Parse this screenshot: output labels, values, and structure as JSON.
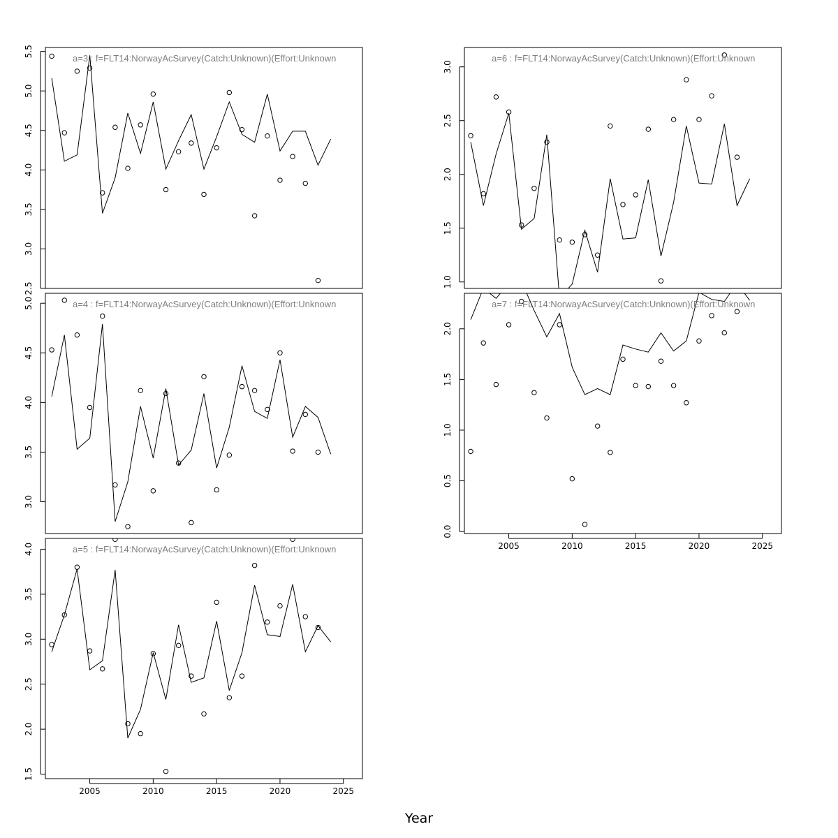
{
  "figure": {
    "xlabel": "Year"
  },
  "chart_data": [
    {
      "type": "line",
      "title": "a=3  :  f=FLT14:NorwayAcSurvey(Catch:Unknown)(Effort:Unknown",
      "xlim": [
        2001.5,
        2026.5
      ],
      "ylim": [
        2.5,
        5.55
      ],
      "yticks": [
        "2.5",
        "3.0",
        "3.5",
        "4.0",
        "4.5",
        "5.0",
        "5.5"
      ],
      "xticks": [],
      "observed": {
        "x": [
          2002,
          2003,
          2004,
          2005,
          2006,
          2007,
          2008,
          2009,
          2010,
          2011,
          2012,
          2013,
          2014,
          2015,
          2016,
          2017,
          2018,
          2019,
          2020,
          2021,
          2022,
          2023
        ],
        "y": [
          5.44,
          4.47,
          5.25,
          5.29,
          3.71,
          4.54,
          4.02,
          4.57,
          4.96,
          3.75,
          4.23,
          4.34,
          3.69,
          4.28,
          4.98,
          4.51,
          3.42,
          4.43,
          3.87,
          4.17,
          3.83,
          2.6
        ]
      },
      "fitted": {
        "x": [
          2002,
          2003,
          2004,
          2005,
          2006,
          2007,
          2008,
          2009,
          2010,
          2011,
          2012,
          2013,
          2014,
          2015,
          2016,
          2017,
          2018,
          2019,
          2020,
          2021,
          2022,
          2023,
          2024
        ],
        "y": [
          5.16,
          4.11,
          4.19,
          5.45,
          3.45,
          3.9,
          4.72,
          4.21,
          4.86,
          4.01,
          4.37,
          4.7,
          4.01,
          4.42,
          4.86,
          4.45,
          4.35,
          4.96,
          4.24,
          4.49,
          4.49,
          4.06,
          4.39
        ]
      }
    },
    {
      "type": "line",
      "title": "a=4  :  f=FLT14:NorwayAcSurvey(Catch:Unknown)(Effort:Unknown",
      "xlim": [
        2001.5,
        2026.5
      ],
      "ylim": [
        2.68,
        5.1
      ],
      "yticks": [
        "3.0",
        "3.5",
        "4.0",
        "4.5",
        "5.0"
      ],
      "xticks": [],
      "observed": {
        "x": [
          2002,
          2003,
          2004,
          2005,
          2006,
          2007,
          2008,
          2009,
          2010,
          2011,
          2012,
          2013,
          2014,
          2015,
          2016,
          2017,
          2018,
          2019,
          2020,
          2021,
          2022,
          2023
        ],
        "y": [
          4.53,
          5.03,
          4.68,
          3.95,
          4.87,
          3.17,
          2.75,
          4.12,
          3.11,
          4.09,
          3.39,
          2.79,
          4.26,
          3.12,
          3.47,
          4.16,
          4.12,
          3.93,
          4.5,
          3.51,
          3.88,
          3.5
        ]
      },
      "fitted": {
        "x": [
          2002,
          2003,
          2004,
          2005,
          2006,
          2007,
          2008,
          2009,
          2010,
          2011,
          2012,
          2013,
          2014,
          2015,
          2016,
          2017,
          2018,
          2019,
          2020,
          2021,
          2022,
          2023,
          2024
        ],
        "y": [
          4.06,
          4.68,
          3.53,
          3.64,
          4.79,
          2.8,
          3.2,
          3.96,
          3.44,
          4.14,
          3.37,
          3.52,
          4.09,
          3.34,
          3.75,
          4.37,
          3.91,
          3.84,
          4.43,
          3.65,
          3.96,
          3.85,
          3.48
        ]
      }
    },
    {
      "type": "line",
      "title": "a=5  :  f=FLT14:NorwayAcSurvey(Catch:Unknown)(Effort:Unknown",
      "xlim": [
        2001.5,
        2026.5
      ],
      "ylim": [
        1.45,
        4.12
      ],
      "yticks": [
        "1.5",
        "2.0",
        "2.5",
        "3.0",
        "3.5",
        "4.0"
      ],
      "xticks": [
        "2005",
        "2010",
        "2015",
        "2020",
        "2025"
      ],
      "observed": {
        "x": [
          2002,
          2003,
          2004,
          2005,
          2006,
          2007,
          2008,
          2009,
          2010,
          2011,
          2012,
          2013,
          2014,
          2015,
          2016,
          2017,
          2018,
          2019,
          2020,
          2021,
          2022,
          2023
        ],
        "y": [
          2.94,
          3.27,
          3.8,
          2.87,
          2.67,
          4.11,
          2.06,
          1.95,
          2.84,
          1.53,
          2.93,
          2.59,
          2.17,
          3.41,
          2.35,
          2.59,
          3.82,
          3.19,
          3.37,
          4.11,
          3.25,
          3.13
        ]
      },
      "fitted": {
        "x": [
          2002,
          2003,
          2004,
          2005,
          2006,
          2007,
          2008,
          2009,
          2010,
          2011,
          2012,
          2013,
          2014,
          2015,
          2016,
          2017,
          2018,
          2019,
          2020,
          2021,
          2022,
          2023,
          2024
        ],
        "y": [
          2.86,
          3.27,
          3.78,
          2.66,
          2.76,
          3.77,
          1.9,
          2.22,
          2.85,
          2.33,
          3.16,
          2.52,
          2.57,
          3.2,
          2.43,
          2.85,
          3.6,
          3.05,
          3.03,
          3.61,
          2.86,
          3.15,
          2.97
        ]
      }
    },
    {
      "type": "line",
      "title": "a=6  :  f=FLT14:NorwayAcSurvey(Catch:Unknown)(Effort:Unknown",
      "xlim": [
        2001.5,
        2026.5
      ],
      "ylim": [
        0.94,
        3.18
      ],
      "yticks": [
        "1.0",
        "1.5",
        "2.0",
        "2.5",
        "3.0"
      ],
      "xticks": [],
      "observed": {
        "x": [
          2002,
          2003,
          2004,
          2005,
          2006,
          2007,
          2008,
          2009,
          2010,
          2011,
          2012,
          2013,
          2014,
          2015,
          2016,
          2017,
          2018,
          2019,
          2020,
          2021,
          2022,
          2023
        ],
        "y": [
          2.36,
          1.82,
          2.72,
          2.58,
          1.53,
          1.87,
          2.3,
          1.39,
          1.37,
          1.44,
          1.25,
          2.45,
          1.72,
          1.81,
          2.42,
          1.01,
          2.51,
          2.88,
          2.51,
          2.73,
          3.11,
          2.16
        ]
      },
      "fitted": {
        "x": [
          2002,
          2003,
          2004,
          2005,
          2006,
          2007,
          2008,
          2009,
          2010,
          2011,
          2012,
          2013,
          2014,
          2015,
          2016,
          2017,
          2018,
          2019,
          2020,
          2021,
          2022,
          2023,
          2024
        ],
        "y": [
          2.3,
          1.71,
          2.19,
          2.57,
          1.49,
          1.59,
          2.37,
          0.85,
          0.98,
          1.48,
          1.09,
          1.96,
          1.4,
          1.41,
          1.95,
          1.24,
          1.74,
          2.45,
          1.92,
          1.91,
          2.47,
          1.71,
          1.96
        ]
      }
    },
    {
      "type": "line",
      "title": "a=7  :  f=FLT14:NorwayAcSurvey(Catch:Unknown)(Effort:Unknown",
      "xlim": [
        2001.5,
        2026.5
      ],
      "ylim": [
        -0.02,
        2.35
      ],
      "yticks": [
        "0.0",
        "0.5",
        "1.0",
        "1.5",
        "2.0"
      ],
      "xticks": [
        "2005",
        "2010",
        "2015",
        "2020",
        "2025"
      ],
      "observed": {
        "x": [
          2002,
          2003,
          2004,
          2005,
          2006,
          2007,
          2008,
          2009,
          2010,
          2011,
          2012,
          2013,
          2014,
          2015,
          2016,
          2017,
          2018,
          2019,
          2020,
          2021,
          2022,
          2023
        ],
        "y": [
          0.79,
          1.86,
          1.45,
          2.04,
          2.27,
          1.37,
          1.12,
          2.04,
          0.52,
          0.07,
          1.04,
          0.78,
          1.7,
          1.44,
          1.43,
          1.68,
          1.44,
          1.27,
          1.88,
          2.13,
          1.96,
          2.17
        ]
      },
      "fitted": {
        "x": [
          2002,
          2003,
          2004,
          2005,
          2006,
          2007,
          2008,
          2009,
          2010,
          2011,
          2012,
          2013,
          2014,
          2015,
          2016,
          2017,
          2018,
          2019,
          2020,
          2021,
          2022,
          2023,
          2024
        ],
        "y": [
          2.09,
          2.4,
          2.3,
          2.45,
          2.47,
          2.18,
          1.92,
          2.15,
          1.62,
          1.35,
          1.41,
          1.35,
          1.84,
          1.8,
          1.77,
          1.96,
          1.78,
          1.88,
          2.36,
          2.29,
          2.27,
          2.45,
          2.28
        ]
      }
    }
  ]
}
